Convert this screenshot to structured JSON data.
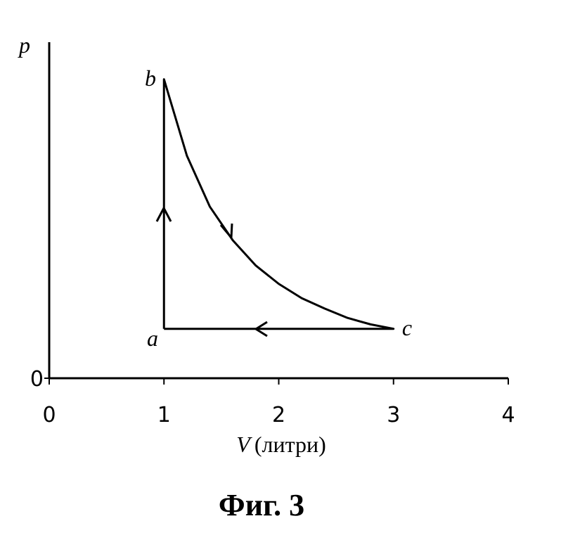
{
  "chart_data": {
    "type": "line",
    "y_label": "p",
    "x_label_symbol": "V",
    "x_label_unit": "(литри)",
    "caption": "Фиг. 3",
    "point_labels": [
      "a",
      "b",
      "c"
    ],
    "xlim": [
      0,
      4
    ],
    "xticks": [
      0,
      1,
      2,
      3,
      4
    ],
    "ylim": [
      0,
      6.8
    ],
    "yticks": [
      0
    ],
    "series": [
      {
        "color": "#000000",
        "x": [
          1,
          1,
          1.2,
          1.4,
          1.6,
          1.8,
          2.0,
          2.2,
          2.4,
          2.6,
          2.8,
          3.0,
          1
        ],
        "values": [
          1,
          6.05,
          4.5,
          3.47,
          2.79,
          2.28,
          1.91,
          1.62,
          1.41,
          1.22,
          1.09,
          1.0,
          1
        ]
      }
    ]
  }
}
